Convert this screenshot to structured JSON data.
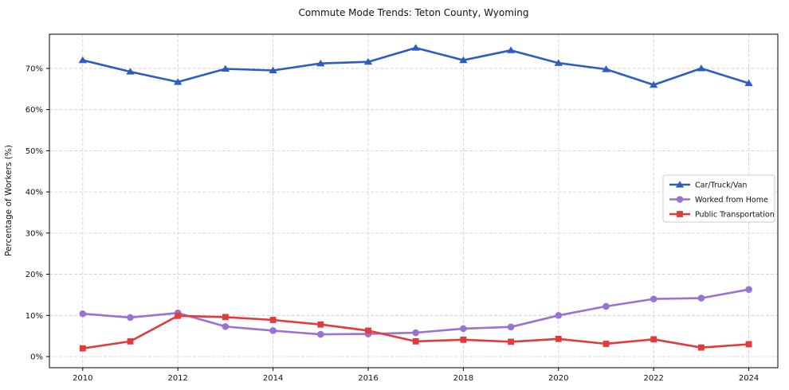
{
  "title": "Commute Mode Trends: Teton County, Wyoming",
  "chart_data": {
    "type": "line",
    "title": "Commute Mode Trends: Teton County, Wyoming",
    "xlabel": "",
    "ylabel": "Percentage of Workers (%)",
    "x": [
      2010,
      2011,
      2012,
      2013,
      2014,
      2015,
      2016,
      2017,
      2018,
      2019,
      2020,
      2021,
      2022,
      2023,
      2024
    ],
    "series": [
      {
        "name": "Car/Truck/Van",
        "color": "#2e5cc5",
        "marker": "triangle",
        "values": [
          72.0,
          69.2,
          66.7,
          69.9,
          69.5,
          71.2,
          71.6,
          75.0,
          72.0,
          74.4,
          71.3,
          69.8,
          66.0,
          70.0,
          66.4
        ]
      },
      {
        "name": "Worked from Home",
        "color": "#9a73d2",
        "marker": "circle",
        "values": [
          10.4,
          9.5,
          10.6,
          7.3,
          6.3,
          5.4,
          5.5,
          5.8,
          6.8,
          7.2,
          10.0,
          12.2,
          14.0,
          14.2,
          16.3
        ]
      },
      {
        "name": "Public Transportation",
        "color": "#e23b3b",
        "marker": "square",
        "values": [
          2.0,
          3.7,
          9.9,
          9.6,
          8.9,
          7.8,
          6.3,
          3.7,
          4.1,
          3.6,
          4.3,
          3.1,
          4.2,
          2.2,
          3.0
        ]
      }
    ],
    "xticks": [
      2010,
      2012,
      2014,
      2016,
      2018,
      2020,
      2022,
      2024
    ],
    "yticks": [
      0,
      10,
      20,
      30,
      40,
      50,
      60,
      70
    ],
    "ytick_suffix": "%",
    "xlim": [
      2009.3,
      2024.61
    ],
    "ylim": [
      -2.7,
      78.3
    ],
    "grid": {
      "on": true,
      "style": "dashed",
      "color": "#cccccc"
    },
    "legend": {
      "position": "right-center",
      "border_color": "#cccccc",
      "background": "#ffffff"
    },
    "spine_color": "#000000"
  }
}
